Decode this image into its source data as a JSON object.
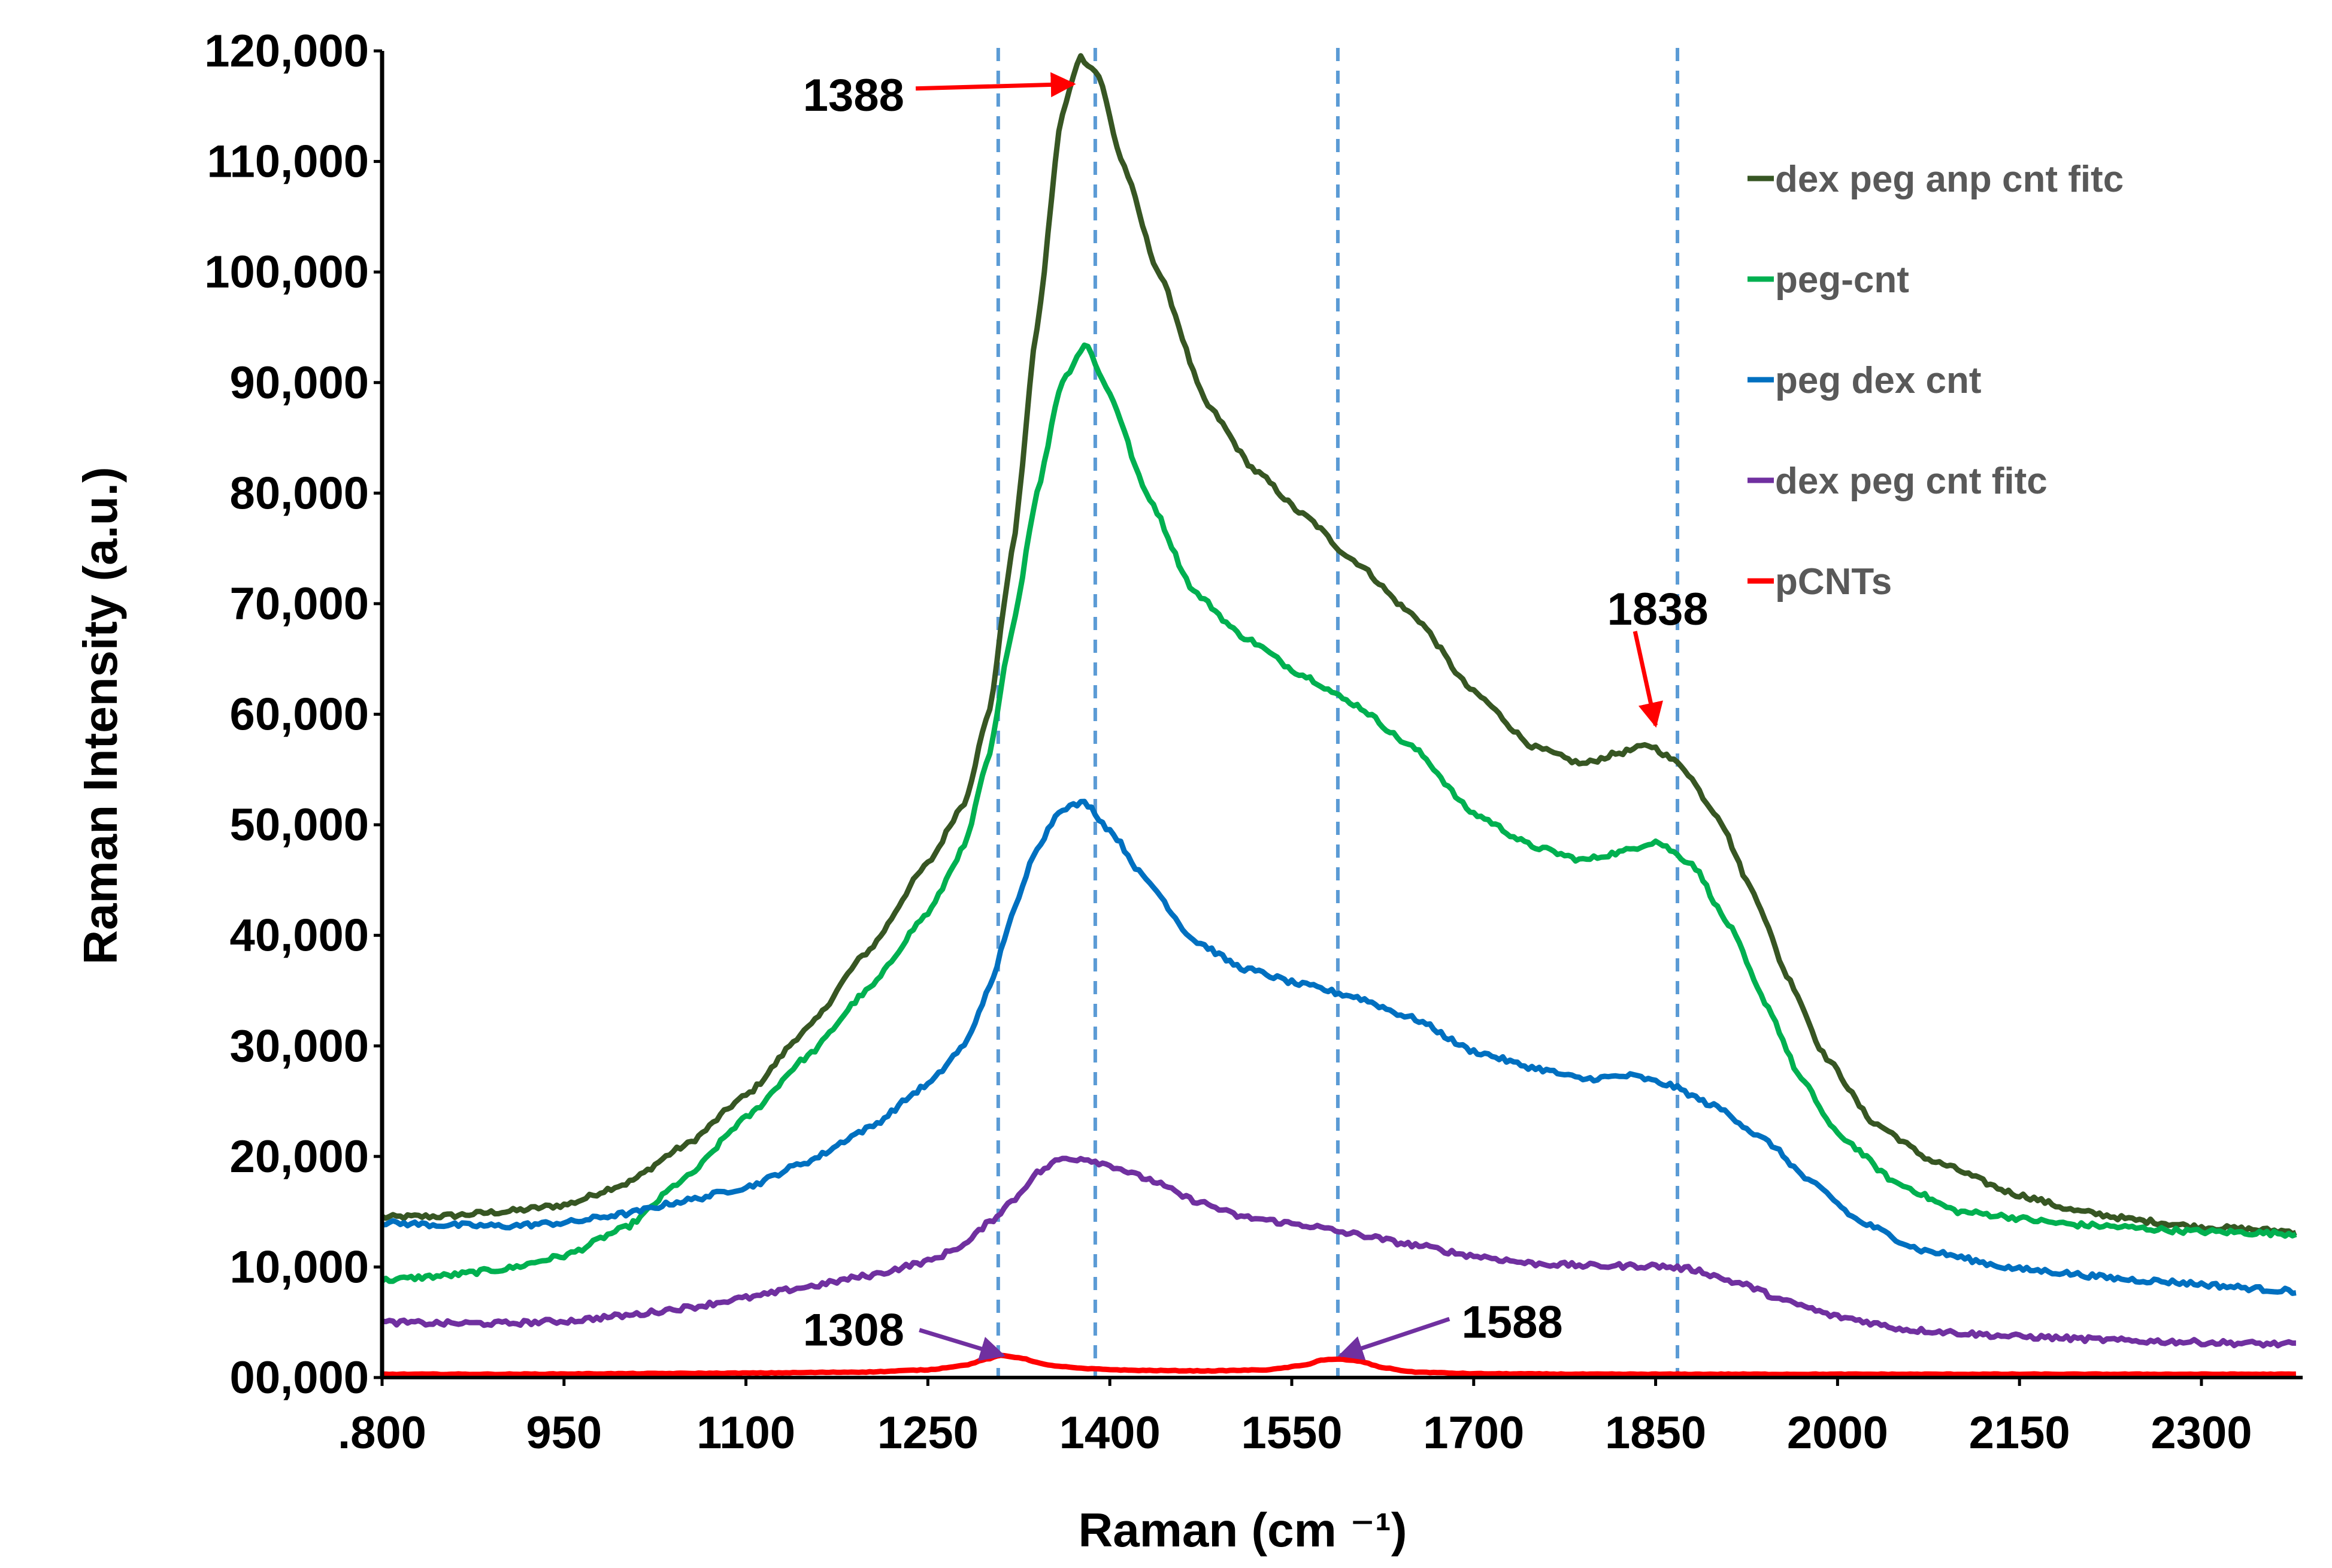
{
  "chart_data": {
    "type": "line",
    "title": "",
    "xlabel": "Raman (cm ⁻¹)",
    "ylabel": "Raman Intensity (a.u.)",
    "xlim": [
      800,
      2380
    ],
    "ylim": [
      0,
      120000
    ],
    "x_ticks": [
      800,
      950,
      1100,
      1250,
      1400,
      1550,
      1700,
      1850,
      2000,
      2150,
      2300
    ],
    "x_tick_labels": [
      ".800",
      "950",
      "1100",
      "1250",
      "1400",
      "1550",
      "1700",
      "1850",
      "2000",
      "2150",
      "2300"
    ],
    "y_ticks": [
      0,
      10000,
      20000,
      30000,
      40000,
      50000,
      60000,
      70000,
      80000,
      90000,
      100000,
      110000,
      120000
    ],
    "y_tick_labels": [
      "00,000",
      "10,000",
      "20,000",
      "30,000",
      "40,000",
      "50,000",
      "60,000",
      "70,000",
      "80,000",
      "90,000",
      "100,000",
      "110,000",
      "120,000"
    ],
    "grid": false,
    "legend_position": "top-right",
    "reference_lines_x": [
      1308,
      1388,
      1588,
      1868
    ],
    "reference_line_color": "#5b9bd5",
    "series": [
      {
        "name": "dex peg anp cnt fitc",
        "color": "#375623",
        "points": [
          [
            800,
            14500
          ],
          [
            850,
            14600
          ],
          [
            900,
            15000
          ],
          [
            950,
            15600
          ],
          [
            1000,
            17500
          ],
          [
            1050,
            21000
          ],
          [
            1100,
            25500
          ],
          [
            1150,
            31500
          ],
          [
            1200,
            38500
          ],
          [
            1250,
            46500
          ],
          [
            1280,
            52000
          ],
          [
            1300,
            60000
          ],
          [
            1320,
            75000
          ],
          [
            1340,
            95000
          ],
          [
            1360,
            114000
          ],
          [
            1375,
            119500
          ],
          [
            1390,
            118000
          ],
          [
            1410,
            110000
          ],
          [
            1440,
            100000
          ],
          [
            1480,
            88000
          ],
          [
            1520,
            82000
          ],
          [
            1560,
            78000
          ],
          [
            1600,
            74000
          ],
          [
            1650,
            69000
          ],
          [
            1700,
            62000
          ],
          [
            1750,
            57000
          ],
          [
            1790,
            55500
          ],
          [
            1820,
            56500
          ],
          [
            1845,
            57200
          ],
          [
            1870,
            55500
          ],
          [
            1900,
            51000
          ],
          [
            1930,
            44000
          ],
          [
            1960,
            36000
          ],
          [
            1990,
            29000
          ],
          [
            2030,
            23000
          ],
          [
            2080,
            19500
          ],
          [
            2150,
            16500
          ],
          [
            2200,
            15000
          ],
          [
            2250,
            14200
          ],
          [
            2300,
            13600
          ],
          [
            2380,
            13200
          ]
        ]
      },
      {
        "name": "peg-cnt",
        "color": "#00b050",
        "points": [
          [
            800,
            8800
          ],
          [
            850,
            9200
          ],
          [
            900,
            9800
          ],
          [
            950,
            11000
          ],
          [
            1000,
            13500
          ],
          [
            1050,
            18000
          ],
          [
            1100,
            23500
          ],
          [
            1150,
            29000
          ],
          [
            1200,
            35000
          ],
          [
            1250,
            42000
          ],
          [
            1280,
            48000
          ],
          [
            1300,
            56000
          ],
          [
            1320,
            68000
          ],
          [
            1340,
            80000
          ],
          [
            1360,
            90000
          ],
          [
            1380,
            93500
          ],
          [
            1400,
            89000
          ],
          [
            1430,
            80000
          ],
          [
            1470,
            71000
          ],
          [
            1510,
            67000
          ],
          [
            1560,
            63500
          ],
          [
            1600,
            61000
          ],
          [
            1650,
            57000
          ],
          [
            1700,
            51000
          ],
          [
            1750,
            48000
          ],
          [
            1790,
            46800
          ],
          [
            1820,
            47500
          ],
          [
            1850,
            48500
          ],
          [
            1880,
            46500
          ],
          [
            1910,
            41000
          ],
          [
            1940,
            34000
          ],
          [
            1970,
            27000
          ],
          [
            2000,
            22000
          ],
          [
            2050,
            17500
          ],
          [
            2100,
            15000
          ],
          [
            2200,
            13800
          ],
          [
            2300,
            13200
          ],
          [
            2380,
            13000
          ]
        ]
      },
      {
        "name": "peg dex cnt",
        "color": "#0070c0",
        "points": [
          [
            800,
            14000
          ],
          [
            850,
            13800
          ],
          [
            900,
            13700
          ],
          [
            950,
            14000
          ],
          [
            1000,
            14800
          ],
          [
            1050,
            16000
          ],
          [
            1100,
            17200
          ],
          [
            1150,
            19500
          ],
          [
            1200,
            22500
          ],
          [
            1250,
            26500
          ],
          [
            1280,
            30000
          ],
          [
            1300,
            35000
          ],
          [
            1320,
            42000
          ],
          [
            1340,
            48000
          ],
          [
            1360,
            51500
          ],
          [
            1380,
            52000
          ],
          [
            1400,
            49500
          ],
          [
            1430,
            45000
          ],
          [
            1470,
            39500
          ],
          [
            1510,
            37000
          ],
          [
            1560,
            35500
          ],
          [
            1600,
            34500
          ],
          [
            1650,
            32500
          ],
          [
            1700,
            29500
          ],
          [
            1750,
            28000
          ],
          [
            1790,
            27000
          ],
          [
            1830,
            27300
          ],
          [
            1860,
            26500
          ],
          [
            1900,
            24500
          ],
          [
            1940,
            21500
          ],
          [
            1980,
            17500
          ],
          [
            2020,
            14000
          ],
          [
            2070,
            11500
          ],
          [
            2150,
            9800
          ],
          [
            2250,
            8800
          ],
          [
            2380,
            7800
          ]
        ]
      },
      {
        "name": "dex peg  cnt fitc",
        "color": "#7030a0",
        "points": [
          [
            800,
            5000
          ],
          [
            850,
            4900
          ],
          [
            900,
            4900
          ],
          [
            950,
            5100
          ],
          [
            1000,
            5600
          ],
          [
            1050,
            6300
          ],
          [
            1100,
            7200
          ],
          [
            1150,
            8200
          ],
          [
            1200,
            9200
          ],
          [
            1250,
            10500
          ],
          [
            1280,
            12000
          ],
          [
            1300,
            14000
          ],
          [
            1320,
            16000
          ],
          [
            1340,
            18500
          ],
          [
            1360,
            19800
          ],
          [
            1380,
            19800
          ],
          [
            1400,
            19200
          ],
          [
            1430,
            18000
          ],
          [
            1470,
            16000
          ],
          [
            1510,
            14500
          ],
          [
            1560,
            13800
          ],
          [
            1600,
            13000
          ],
          [
            1650,
            12000
          ],
          [
            1700,
            11000
          ],
          [
            1750,
            10300
          ],
          [
            1800,
            10100
          ],
          [
            1850,
            10100
          ],
          [
            1880,
            9800
          ],
          [
            1920,
            8500
          ],
          [
            1960,
            6800
          ],
          [
            2000,
            5500
          ],
          [
            2060,
            4300
          ],
          [
            2150,
            3700
          ],
          [
            2250,
            3300
          ],
          [
            2380,
            3000
          ]
        ]
      },
      {
        "name": "pCNTs",
        "color": "#ff0000",
        "points": [
          [
            800,
            300
          ],
          [
            900,
            300
          ],
          [
            1000,
            350
          ],
          [
            1100,
            400
          ],
          [
            1200,
            500
          ],
          [
            1250,
            700
          ],
          [
            1280,
            1100
          ],
          [
            1300,
            1700
          ],
          [
            1310,
            2000
          ],
          [
            1325,
            1800
          ],
          [
            1350,
            1100
          ],
          [
            1380,
            800
          ],
          [
            1420,
            650
          ],
          [
            1480,
            600
          ],
          [
            1530,
            700
          ],
          [
            1560,
            1100
          ],
          [
            1575,
            1600
          ],
          [
            1590,
            1650
          ],
          [
            1605,
            1500
          ],
          [
            1625,
            900
          ],
          [
            1650,
            500
          ],
          [
            1700,
            350
          ],
          [
            1800,
            300
          ],
          [
            1900,
            300
          ],
          [
            2000,
            300
          ],
          [
            2100,
            300
          ],
          [
            2200,
            300
          ],
          [
            2380,
            300
          ]
        ]
      }
    ],
    "annotations": [
      {
        "text": "1388",
        "color": "#ff0000",
        "tip": [
          1370,
          117000
        ],
        "tail": [
          1240,
          116600
        ],
        "label_at": [
          1147,
          116000
        ]
      },
      {
        "text": "1838",
        "color": "#ff0000",
        "tip": [
          1850,
          59000
        ],
        "tail": [
          1833,
          67500
        ],
        "label_at": [
          1810,
          69500
        ]
      },
      {
        "text": "1308",
        "color": "#7030a0",
        "tip": [
          1312,
          2000
        ],
        "tail": [
          1243,
          4300
        ],
        "label_at": [
          1147,
          4300
        ]
      },
      {
        "text": "1588",
        "color": "#7030a0",
        "tip": [
          1590,
          2000
        ],
        "tail": [
          1680,
          5300
        ],
        "label_at": [
          1690,
          5000
        ]
      }
    ]
  }
}
